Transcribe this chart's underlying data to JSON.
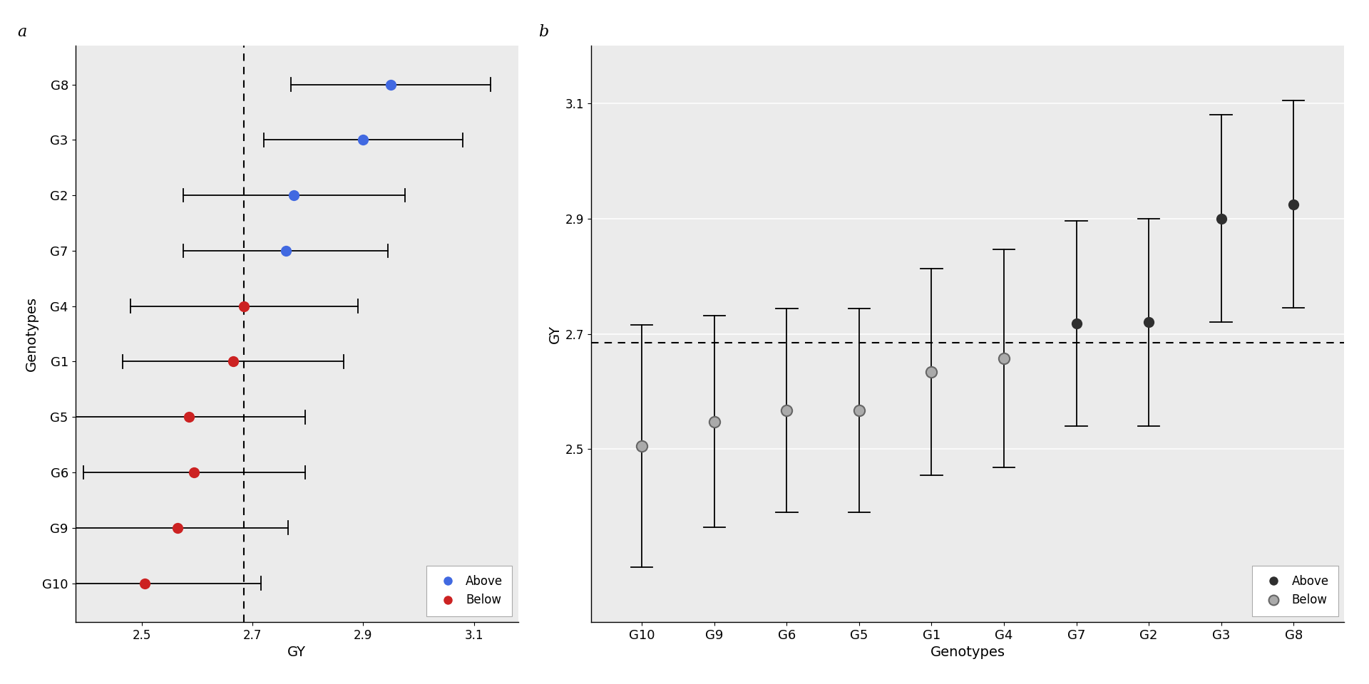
{
  "panel_a": {
    "genotypes": [
      "G8",
      "G3",
      "G2",
      "G7",
      "G4",
      "G1",
      "G5",
      "G6",
      "G9",
      "G10"
    ],
    "values": [
      2.95,
      2.9,
      2.775,
      2.76,
      2.685,
      2.665,
      2.585,
      2.595,
      2.565,
      2.505
    ],
    "ci_lower": [
      2.77,
      2.72,
      2.575,
      2.575,
      2.48,
      2.465,
      2.375,
      2.395,
      2.365,
      2.295
    ],
    "ci_upper": [
      3.13,
      3.08,
      2.975,
      2.945,
      2.89,
      2.865,
      2.795,
      2.795,
      2.765,
      2.715
    ],
    "colors": [
      "#4169E1",
      "#4169E1",
      "#4169E1",
      "#4169E1",
      "#CC2222",
      "#CC2222",
      "#CC2222",
      "#CC2222",
      "#CC2222",
      "#CC2222"
    ],
    "dashed_x": 2.685,
    "xlim": [
      2.38,
      3.18
    ],
    "xticks": [
      2.5,
      2.7,
      2.9,
      3.1
    ],
    "xlabel": "GY",
    "ylabel": "Genotypes",
    "panel_label": "a"
  },
  "panel_b": {
    "genotypes": [
      "G10",
      "G9",
      "G6",
      "G5",
      "G1",
      "G4",
      "G7",
      "G2",
      "G3",
      "G8"
    ],
    "values": [
      2.505,
      2.548,
      2.567,
      2.567,
      2.634,
      2.657,
      2.718,
      2.72,
      2.9,
      2.925
    ],
    "ci_lower": [
      2.295,
      2.365,
      2.39,
      2.39,
      2.455,
      2.468,
      2.54,
      2.54,
      2.72,
      2.745
    ],
    "ci_upper": [
      2.715,
      2.731,
      2.744,
      2.744,
      2.813,
      2.846,
      2.896,
      2.9,
      3.08,
      3.105
    ],
    "dark_color": "#2F2F2F",
    "light_color": "#AAAAAA",
    "above_indices": [
      6,
      7,
      8,
      9
    ],
    "dashed_y": 2.685,
    "ylim": [
      2.2,
      3.2
    ],
    "yticks": [
      2.5,
      2.7,
      2.9,
      3.1
    ],
    "xlabel": "Genotypes",
    "ylabel": "GY",
    "panel_label": "b"
  },
  "background_color": "#EBEBEB",
  "marker_size": 11,
  "capsize_half": 0.12
}
